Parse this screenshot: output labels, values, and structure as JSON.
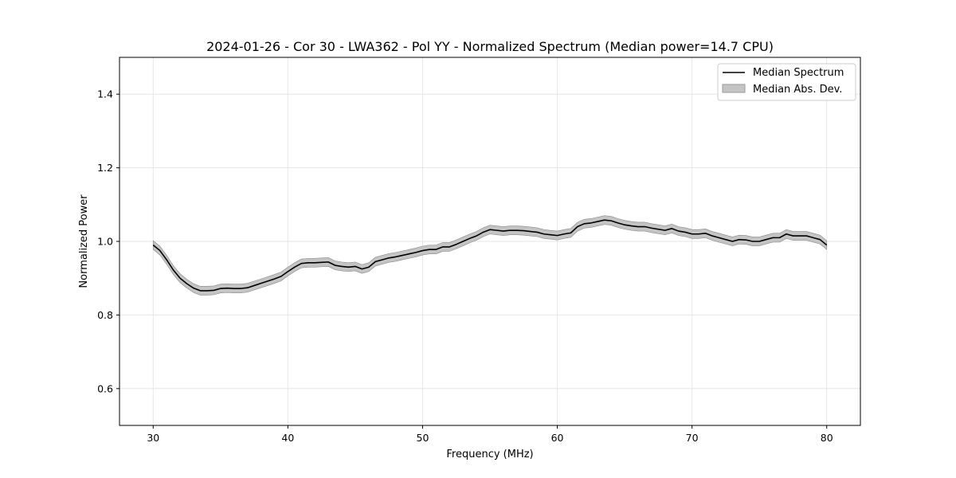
{
  "chart_data": {
    "type": "line",
    "title": "2024-01-26 - Cor 30 - LWA362 - Pol YY - Normalized Spectrum (Median power=14.7 CPU)",
    "xlabel": "Frequency (MHz)",
    "ylabel": "Normalized Power",
    "xlim": [
      27.5,
      82.5
    ],
    "ylim": [
      0.5,
      1.5
    ],
    "xticks": [
      30,
      40,
      50,
      60,
      70,
      80
    ],
    "xtick_labels": [
      "30",
      "40",
      "50",
      "60",
      "70",
      "80"
    ],
    "yticks": [
      0.6,
      0.8,
      1.0,
      1.2,
      1.4
    ],
    "ytick_labels": [
      "0.6",
      "0.8",
      "1.0",
      "1.2",
      "1.4"
    ],
    "grid": true,
    "legend_position": "top-right",
    "legend": [
      "Median Spectrum",
      "Median Abs. Dev."
    ],
    "colors": {
      "line": "#000000",
      "band": "#c4c4c4",
      "band_edge": "#8a8a8a",
      "grid": "#e6e6e6"
    },
    "series": [
      {
        "name": "Median Spectrum",
        "x": [
          30,
          30.5,
          31,
          31.5,
          32,
          32.5,
          33,
          33.5,
          34,
          34.5,
          35,
          35.5,
          36,
          36.5,
          37,
          37.5,
          38,
          38.5,
          39,
          39.5,
          40,
          40.5,
          41,
          41.5,
          42,
          42.5,
          43,
          43.5,
          44,
          44.5,
          45,
          45.5,
          46,
          46.5,
          47,
          47.5,
          48,
          48.5,
          49,
          49.5,
          50,
          50.5,
          51,
          51.5,
          52,
          52.5,
          53,
          53.5,
          54,
          54.5,
          55,
          55.5,
          56,
          56.5,
          57,
          57.5,
          58,
          58.5,
          59,
          59.5,
          60,
          60.5,
          61,
          61.5,
          62,
          62.5,
          63,
          63.5,
          64,
          64.5,
          65,
          65.5,
          66,
          66.5,
          67,
          67.5,
          68,
          68.5,
          69,
          69.5,
          70,
          70.5,
          71,
          71.5,
          72,
          72.5,
          73,
          73.5,
          74,
          74.5,
          75,
          75.5,
          76,
          76.5,
          77,
          77.5,
          78,
          78.5,
          79,
          79.5,
          80
        ],
        "values": [
          0.99,
          0.975,
          0.95,
          0.922,
          0.9,
          0.885,
          0.873,
          0.866,
          0.866,
          0.867,
          0.872,
          0.873,
          0.872,
          0.872,
          0.874,
          0.88,
          0.886,
          0.892,
          0.898,
          0.905,
          0.918,
          0.93,
          0.94,
          0.942,
          0.942,
          0.943,
          0.944,
          0.935,
          0.932,
          0.93,
          0.932,
          0.925,
          0.93,
          0.945,
          0.95,
          0.955,
          0.958,
          0.962,
          0.966,
          0.97,
          0.975,
          0.978,
          0.978,
          0.985,
          0.985,
          0.992,
          1.0,
          1.008,
          1.015,
          1.025,
          1.032,
          1.03,
          1.028,
          1.03,
          1.03,
          1.029,
          1.027,
          1.025,
          1.02,
          1.018,
          1.016,
          1.02,
          1.023,
          1.04,
          1.048,
          1.05,
          1.054,
          1.058,
          1.056,
          1.05,
          1.045,
          1.042,
          1.04,
          1.04,
          1.036,
          1.033,
          1.03,
          1.035,
          1.028,
          1.025,
          1.02,
          1.02,
          1.022,
          1.015,
          1.01,
          1.005,
          1.0,
          1.005,
          1.004,
          1.0,
          1.0,
          1.005,
          1.01,
          1.01,
          1.02,
          1.015,
          1.015,
          1.015,
          1.01,
          1.005,
          0.99
        ]
      }
    ],
    "band": {
      "name": "Median Abs. Dev.",
      "halfwidth": 0.012
    }
  }
}
